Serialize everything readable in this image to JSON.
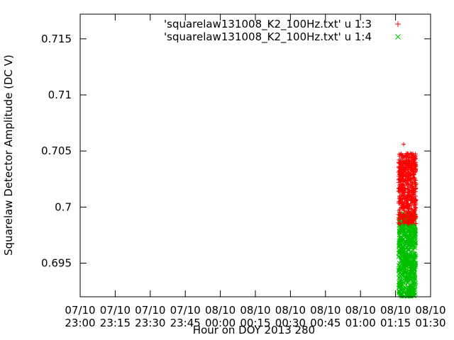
{
  "chart_data": {
    "type": "scatter",
    "title": "",
    "xlabel": "Hour on DOY 2013 280",
    "ylabel": "Squarelaw Detector Amplitude (DC V)",
    "xlim": [
      0,
      150
    ],
    "ylim": [
      0.692,
      0.7172
    ],
    "x_ticks": [
      {
        "value": 0,
        "label_line1": "07/10",
        "label_line2": "23:00"
      },
      {
        "value": 15,
        "label_line1": "07/10",
        "label_line2": "23:15"
      },
      {
        "value": 30,
        "label_line1": "07/10",
        "label_line2": "23:30"
      },
      {
        "value": 45,
        "label_line1": "07/10",
        "label_line2": "23:45"
      },
      {
        "value": 60,
        "label_line1": "08/10",
        "label_line2": "00:00"
      },
      {
        "value": 75,
        "label_line1": "08/10",
        "label_line2": "00:15"
      },
      {
        "value": 90,
        "label_line1": "08/10",
        "label_line2": "00:30"
      },
      {
        "value": 105,
        "label_line1": "08/10",
        "label_line2": "00:45"
      },
      {
        "value": 120,
        "label_line1": "08/10",
        "label_line2": "01:00"
      },
      {
        "value": 135,
        "label_line1": "08/10",
        "label_line2": "01:15"
      },
      {
        "value": 150,
        "label_line1": "08/10",
        "label_line2": "01:30"
      }
    ],
    "y_ticks": [
      {
        "value": 0.695,
        "label": "0.695"
      },
      {
        "value": 0.7,
        "label": "0.7"
      },
      {
        "value": 0.705,
        "label": "0.705"
      },
      {
        "value": 0.71,
        "label": "0.71"
      },
      {
        "value": 0.715,
        "label": "0.715"
      }
    ],
    "legend_position": "top-right",
    "grid": false,
    "series": [
      {
        "name": "'squarelaw131008_K2_100Hz.txt' u 1:3",
        "marker": "plus",
        "color": "#ff0000",
        "x_range": [
          136.2,
          143.8
        ],
        "y_range": [
          0.6985,
          0.7048
        ],
        "y_max_point": 0.7056,
        "approx_point_count": 600
      },
      {
        "name": "'squarelaw131008_K2_100Hz.txt' u 1:4",
        "marker": "cross",
        "color": "#00c000",
        "x_range": [
          136.2,
          143.8
        ],
        "y_range": [
          0.692,
          0.6995
        ],
        "y_max_point": 0.7009,
        "approx_point_count": 700
      }
    ]
  }
}
